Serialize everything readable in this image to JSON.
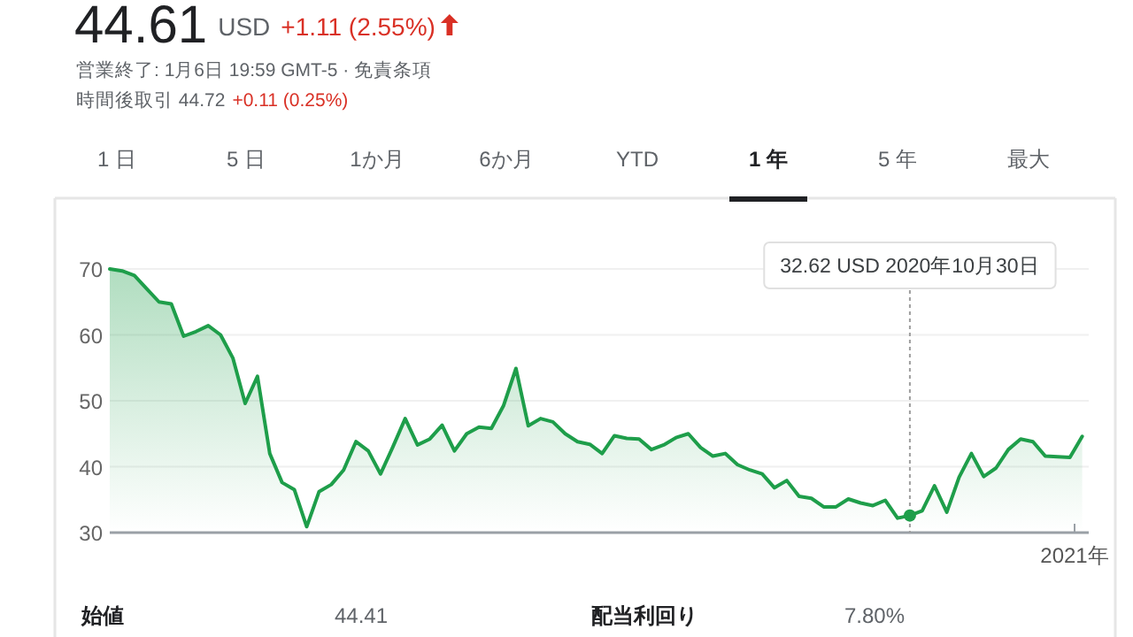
{
  "chart_data": {
    "type": "area",
    "color": "#1e9e4a",
    "grid": "y",
    "ylim": [
      30,
      70
    ],
    "yticks": [
      30,
      40,
      50,
      60,
      70
    ],
    "categories": [
      null,
      null,
      null,
      null,
      null,
      null,
      null,
      null,
      null,
      null,
      null,
      null,
      null,
      null,
      null,
      null,
      null,
      null,
      null,
      null,
      null,
      null,
      null,
      null,
      null,
      null,
      null,
      null,
      null,
      null,
      null,
      null,
      null,
      null,
      null,
      null,
      null,
      null,
      null,
      null,
      null,
      null,
      null,
      null,
      null,
      null,
      null,
      null,
      null,
      null,
      null,
      null,
      null,
      null,
      null,
      null,
      null,
      null,
      null,
      null,
      null,
      null,
      null,
      null,
      null,
      null,
      null,
      null,
      null,
      null,
      null,
      null,
      null,
      null,
      null,
      null,
      null,
      null,
      null,
      null
    ],
    "values": [
      70.0,
      69.7,
      69.0,
      67.0,
      65.0,
      64.7,
      59.8,
      60.5,
      61.4,
      60.0,
      56.5,
      49.6,
      53.7,
      42.0,
      37.6,
      36.5,
      30.9,
      36.2,
      37.3,
      39.5,
      43.8,
      42.4,
      38.9,
      43.0,
      47.3,
      43.3,
      44.2,
      46.3,
      42.4,
      45.0,
      46.0,
      45.8,
      49.3,
      54.9,
      46.2,
      47.3,
      46.8,
      45.0,
      43.8,
      43.4,
      42.0,
      44.7,
      44.3,
      44.2,
      42.6,
      43.3,
      44.4,
      45.0,
      42.9,
      41.6,
      42.0,
      40.3,
      39.5,
      38.9,
      36.8,
      37.9,
      35.5,
      35.2,
      33.9,
      33.9,
      35.1,
      34.5,
      34.1,
      34.9,
      32.2,
      32.6,
      33.3,
      37.1,
      33.1,
      38.4,
      42.0,
      38.5,
      39.8,
      42.6,
      44.2,
      43.8,
      41.6,
      41.5,
      41.4,
      44.6
    ],
    "annotations": [
      "44.61",
      "USD",
      "+1.11 (2.55%)",
      "営業終了: 1月6日 19:59 GMT-5 · 免責条項",
      "時間後取引 44.72",
      "+0.11 (0.25%)",
      "1 日",
      "5 日",
      "1か月",
      "6か月",
      "YTD",
      "1 年",
      "5 年",
      "最大",
      "始値",
      "44.41",
      "配当利回り",
      "7.80%",
      "32.62 USD  2020年10月30日",
      "2021年"
    ]
  }
}
